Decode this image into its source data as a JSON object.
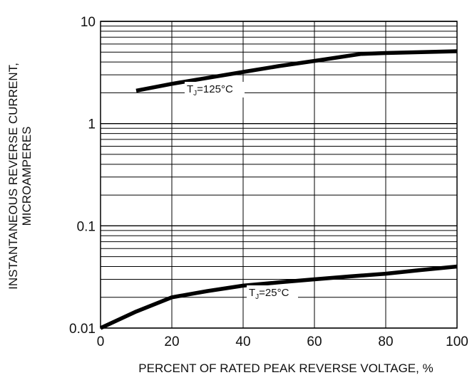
{
  "chart_data": {
    "type": "line",
    "title": "",
    "xlabel": "PERCENT OF RATED PEAK REVERSE VOLTAGE, %",
    "ylabel_lines": [
      "INSTANTANEOUS REVERSE CURRENT,",
      "MICROAMPERES"
    ],
    "x_scale": "linear",
    "y_scale": "log",
    "xlim": [
      0,
      100
    ],
    "ylim": [
      0.01,
      10
    ],
    "x_ticks": [
      0,
      20,
      40,
      60,
      80,
      100
    ],
    "x_tick_labels": [
      "0",
      "20",
      "40",
      "60",
      "80",
      "100"
    ],
    "y_ticks": [
      0.01,
      0.1,
      1,
      10
    ],
    "y_tick_labels": [
      "0.01",
      "0.1",
      "1",
      "10"
    ],
    "grid": true,
    "legend": "none",
    "line_color": "#000000",
    "series": [
      {
        "label_main": "T",
        "label_sub": "J",
        "label_rest": "=125°C",
        "x": [
          10,
          20,
          30,
          40,
          50,
          60,
          73,
          80,
          90,
          100
        ],
        "y": [
          2.1,
          2.45,
          2.8,
          3.2,
          3.65,
          4.1,
          4.8,
          4.9,
          5.0,
          5.1
        ]
      },
      {
        "label_main": "T",
        "label_sub": "J",
        "label_rest": "=25°C",
        "x": [
          0,
          10,
          20,
          30,
          40,
          50,
          60,
          70,
          80,
          90,
          100
        ],
        "y": [
          0.01,
          0.0145,
          0.02,
          0.023,
          0.026,
          0.028,
          0.03,
          0.032,
          0.034,
          0.037,
          0.04
        ]
      }
    ]
  }
}
